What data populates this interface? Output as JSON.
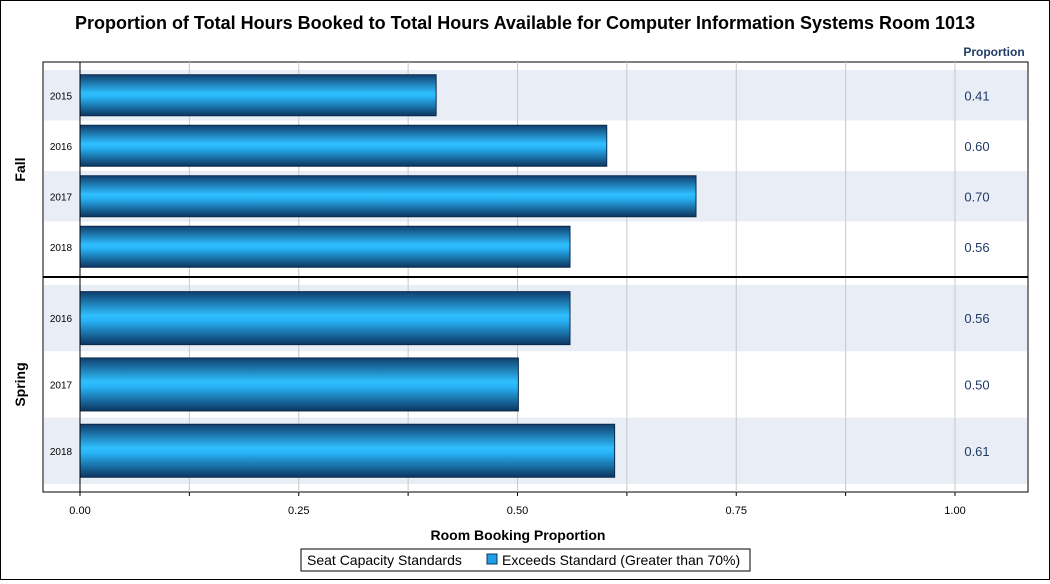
{
  "chart_data": {
    "type": "bar",
    "orientation": "horizontal",
    "title": "Proportion of Total Hours Booked to Total Hours Available for Computer Information Systems Room 1013",
    "xlabel": "Room Booking Proportion",
    "value_column_header": "Proportion",
    "xlim": [
      0,
      1.08
    ],
    "x_ticks": [
      "0.00",
      "0.25",
      "0.50",
      "0.75",
      "1.00"
    ],
    "bar_color": "#1e9fe6",
    "groups": [
      {
        "name": "Fall",
        "categories": [
          "2015",
          "2016",
          "2017",
          "2018"
        ],
        "values": [
          0.407,
          0.602,
          0.704,
          0.56
        ],
        "labels": [
          "0.41",
          "0.60",
          "0.70",
          "0.56"
        ]
      },
      {
        "name": "Spring",
        "categories": [
          "2016",
          "2017",
          "2018"
        ],
        "values": [
          0.56,
          0.501,
          0.611
        ],
        "labels": [
          "0.56",
          "0.50",
          "0.61"
        ]
      }
    ],
    "legend": {
      "title": "Seat Capacity Standards",
      "entries": [
        {
          "label": "Exceeds Standard (Greater than 70%)",
          "color": "#1e9fe6"
        }
      ],
      "position": "bottom"
    }
  }
}
